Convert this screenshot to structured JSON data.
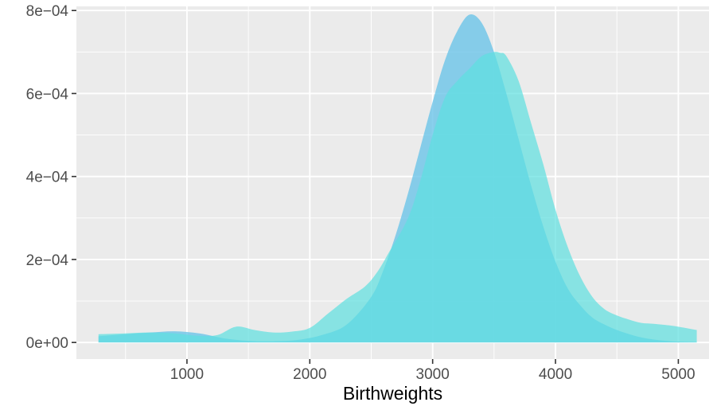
{
  "chart_data": {
    "type": "area",
    "title": "",
    "xlabel": "Birthweights",
    "ylabel": "",
    "xlim": [
      100,
      5250
    ],
    "ylim": [
      -4e-05,
      0.00081
    ],
    "x_ticks": [
      1000,
      2000,
      3000,
      4000,
      5000
    ],
    "x_tick_labels": [
      "1000",
      "2000",
      "3000",
      "4000",
      "5000"
    ],
    "y_ticks": [
      0,
      0.0002,
      0.0004,
      0.0006,
      0.0008
    ],
    "y_tick_labels": [
      "0e+00",
      "2e−04",
      "4e−04",
      "6e−04",
      "8e−04"
    ],
    "grid": true,
    "legend": "none",
    "background": "#ebebeb",
    "gridline_color": "#ffffff",
    "series": [
      {
        "color": "#6bc4e8",
        "opacity": 0.8,
        "x": [
          280,
          500,
          700,
          900,
          1100,
          1300,
          1500,
          1700,
          1900,
          2100,
          2300,
          2500,
          2600,
          2700,
          2800,
          2900,
          3000,
          3100,
          3200,
          3300,
          3400,
          3500,
          3600,
          3700,
          3800,
          3900,
          4000,
          4100,
          4200,
          4300,
          4400,
          4500,
          4600,
          4700,
          4800,
          4900,
          5000,
          5150
        ],
        "y": [
          1.5e-05,
          2e-05,
          2.4e-05,
          2.7e-05,
          2.2e-05,
          1e-05,
          4e-06,
          3e-06,
          6e-06,
          1.8e-05,
          4.3e-05,
          0.00011,
          0.000175,
          0.00026,
          0.00036,
          0.00047,
          0.00058,
          0.00068,
          0.00075,
          0.00079,
          0.00077,
          0.0007,
          0.0006,
          0.00049,
          0.00038,
          0.00028,
          0.000195,
          0.00013,
          9e-05,
          6e-05,
          4.3e-05,
          3e-05,
          2e-05,
          1.2e-05,
          7e-06,
          4e-06,
          2e-06,
          1e-06
        ]
      },
      {
        "color": "#5ce0e0",
        "opacity": 0.7,
        "x": [
          280,
          500,
          700,
          900,
          1100,
          1250,
          1400,
          1550,
          1700,
          1850,
          2000,
          2150,
          2300,
          2450,
          2550,
          2650,
          2800,
          2900,
          3000,
          3100,
          3200,
          3300,
          3400,
          3500,
          3550,
          3600,
          3700,
          3800,
          3900,
          4000,
          4100,
          4200,
          4300,
          4400,
          4500,
          4600,
          4700,
          4800,
          4900,
          5000,
          5150
        ],
        "y": [
          2e-05,
          2.2e-05,
          2.4e-05,
          2.2e-05,
          1.6e-05,
          1.8e-05,
          3.8e-05,
          3e-05,
          2.4e-05,
          2.6e-05,
          3.5e-05,
          7e-05,
          0.000105,
          0.000135,
          0.00017,
          0.00022,
          0.0003,
          0.00039,
          0.0005,
          0.00059,
          0.00063,
          0.00066,
          0.00069,
          0.0007,
          0.000698,
          0.00069,
          0.00063,
          0.00053,
          0.00043,
          0.00032,
          0.00023,
          0.00016,
          0.00011,
          8e-05,
          6.5e-05,
          5.5e-05,
          4.7e-05,
          4.5e-05,
          4.2e-05,
          3.8e-05,
          3e-05
        ]
      }
    ]
  }
}
